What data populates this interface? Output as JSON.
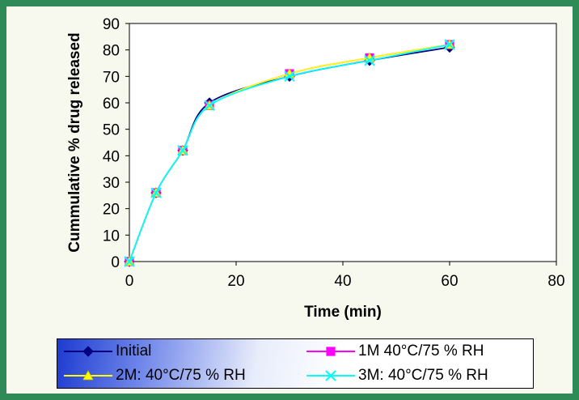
{
  "chart_data": {
    "type": "line",
    "title": "",
    "xlabel": "Time (min)",
    "ylabel": "Cummulative % drug released",
    "xlim": [
      0,
      80
    ],
    "ylim": [
      0,
      90
    ],
    "x_ticks": [
      "0",
      "20",
      "40",
      "60",
      "80"
    ],
    "y_ticks": [
      "0",
      "10",
      "20",
      "30",
      "40",
      "50",
      "60",
      "70",
      "80",
      "90"
    ],
    "grid": false,
    "legend_placement": "bottom",
    "x": [
      0,
      5,
      10,
      15,
      30,
      45,
      60
    ],
    "series": [
      {
        "name": "Initial",
        "values": [
          0,
          26,
          42,
          60,
          70,
          76,
          81
        ],
        "color": "#000080",
        "marker": "diamond"
      },
      {
        "name": "1M 40°C/75 % RH",
        "values": [
          0,
          26,
          42,
          59,
          71,
          77,
          82
        ],
        "color": "#ff00ff",
        "marker": "square"
      },
      {
        "name": "2M: 40°C/75 % RH",
        "values": [
          0,
          26,
          42,
          59,
          71,
          77,
          82
        ],
        "color": "#ffff00",
        "marker": "triangle"
      },
      {
        "name": "3M: 40°C/75 % RH",
        "values": [
          0,
          26,
          42,
          59,
          70,
          76,
          82
        ],
        "color": "#00ffff",
        "marker": "x"
      }
    ]
  },
  "colors": {
    "page_background": "#2e8b57",
    "figure_background": "#f7f9ee",
    "plot_background": "#ffffff",
    "legend_gradient": [
      "#1c3bd0",
      "#ffffff"
    ]
  }
}
